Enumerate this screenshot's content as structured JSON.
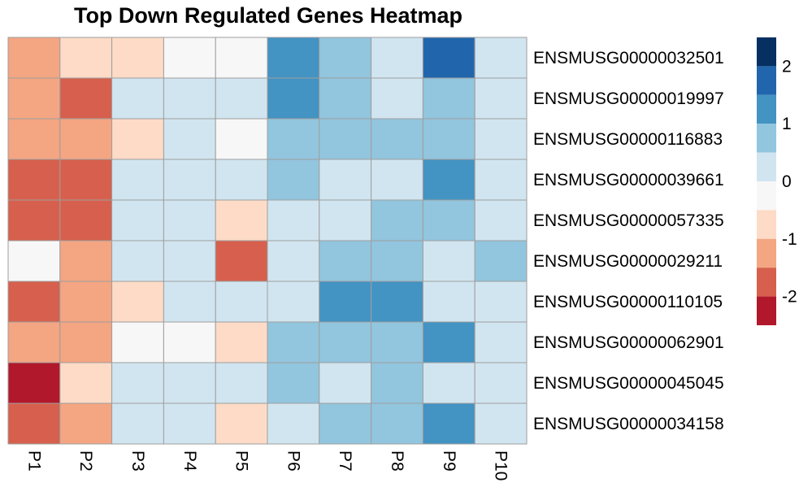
{
  "chart_data": {
    "type": "heatmap",
    "title": "Top Down Regulated Genes Heatmap",
    "columns": [
      "P1",
      "P2",
      "P3",
      "P4",
      "P5",
      "P6",
      "P7",
      "P8",
      "P9",
      "P10"
    ],
    "rows": [
      "ENSMUSG00000032501",
      "ENSMUSG00000019997",
      "ENSMUSG00000116883",
      "ENSMUSG00000039661",
      "ENSMUSG00000057335",
      "ENSMUSG00000029211",
      "ENSMUSG00000110105",
      "ENSMUSG00000062901",
      "ENSMUSG00000045045",
      "ENSMUSG00000034158"
    ],
    "values": [
      [
        -1.25,
        -0.75,
        -0.75,
        -0.25,
        -0.25,
        1.25,
        0.75,
        0.25,
        1.75,
        0.0
      ],
      [
        -1.25,
        -1.75,
        0.0,
        0.0,
        0.0,
        1.25,
        0.75,
        0.0,
        0.75,
        0.0
      ],
      [
        -1.25,
        -1.25,
        -0.75,
        0.25,
        -0.25,
        0.75,
        0.75,
        0.75,
        0.75,
        0.25
      ],
      [
        -1.75,
        -1.75,
        0.0,
        0.0,
        0.0,
        0.75,
        0.25,
        0.25,
        1.25,
        0.25
      ],
      [
        -1.75,
        -1.75,
        0.25,
        0.25,
        -0.75,
        0.25,
        0.25,
        0.75,
        0.75,
        0.25
      ],
      [
        -0.25,
        -1.25,
        0.0,
        0.25,
        -1.75,
        0.25,
        0.75,
        0.75,
        0.25,
        0.75
      ],
      [
        -1.75,
        -1.25,
        -0.75,
        0.0,
        0.0,
        0.25,
        1.25,
        1.25,
        0.0,
        0.25
      ],
      [
        -1.25,
        -1.25,
        -0.25,
        -0.25,
        -0.75,
        0.75,
        0.75,
        0.75,
        1.25,
        0.0
      ],
      [
        -2.25,
        -0.75,
        0.0,
        0.0,
        0.0,
        0.75,
        0.25,
        0.75,
        0.25,
        0.25
      ],
      [
        -1.75,
        -1.25,
        0.0,
        0.0,
        -0.75,
        0.25,
        0.75,
        0.75,
        1.25,
        0.25
      ]
    ],
    "color_scale": {
      "breaks": [
        2.5,
        2,
        1.5,
        1,
        0.5,
        0,
        -0.5,
        -1,
        -1.5,
        -2,
        -2.5
      ],
      "colors": [
        "#053061",
        "#2166ac",
        "#4393c3",
        "#92c5de",
        "#d1e5f0",
        "#f7f7f7",
        "#fddbc7",
        "#f4a582",
        "#d6604d",
        "#b2182b",
        "#67001f"
      ],
      "tick_labels": [
        "2",
        "1",
        "0",
        "-1",
        "-2"
      ]
    },
    "grid": true,
    "legend": "right"
  }
}
